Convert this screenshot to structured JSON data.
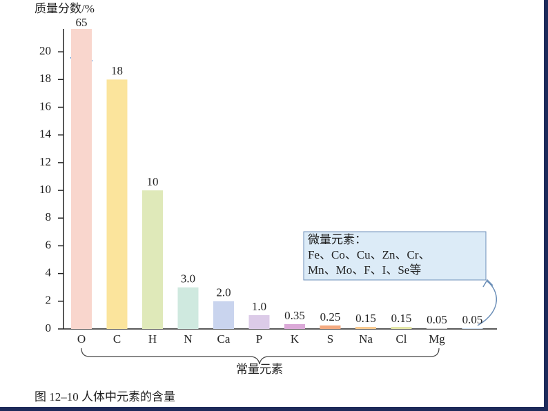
{
  "chart_data": {
    "type": "bar",
    "y_label": "质量分数/%",
    "categories": [
      "O",
      "C",
      "H",
      "N",
      "Ca",
      "P",
      "K",
      "S",
      "Na",
      "Cl",
      "Mg",
      null
    ],
    "values": [
      65,
      18,
      10,
      3.0,
      2.0,
      1.0,
      0.35,
      0.25,
      0.15,
      0.15,
      0.05,
      0.05
    ],
    "value_labels": [
      "65",
      "18",
      "10",
      "3.0",
      "2.0",
      "1.0",
      "0.35",
      "0.25",
      "0.15",
      "0.15",
      "0.05",
      "0.05"
    ],
    "colors": [
      "#f9d6cd",
      "#fbe49c",
      "#dfe9b9",
      "#cfe9df",
      "#c9d4ee",
      "#dccbe8",
      "#dba9d8",
      "#f3a97f",
      "#f8ca90",
      "#e3e6a7",
      "#cfcfcf",
      "#c7d9ec"
    ],
    "ylim": [
      0,
      21.5
    ],
    "yticks": [
      0,
      2,
      4,
      6,
      8,
      10,
      12,
      14,
      16,
      18,
      20
    ],
    "annotations": {
      "trace_title": "微量元素：",
      "trace_line1": "Fe、Co、Cu、Zn、Cr、",
      "trace_line2": "Mn、Mo、F、I、Se等",
      "major": "常量元素"
    },
    "caption": "图 12–10  人体中元素的含量"
  }
}
